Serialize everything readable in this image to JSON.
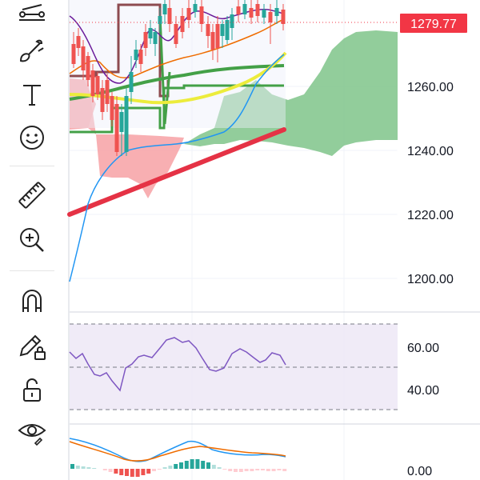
{
  "toolbar": {
    "tools": [
      {
        "name": "crosshair-lines-tool",
        "icon": "lines-icon"
      },
      {
        "name": "brush-tool",
        "icon": "brush-icon"
      },
      {
        "name": "text-tool",
        "icon": "text-icon"
      },
      {
        "name": "emoji-tool",
        "icon": "smiley-icon"
      },
      {
        "name": "ruler-tool",
        "icon": "ruler-icon"
      },
      {
        "name": "zoom-in-tool",
        "icon": "zoom-in-icon"
      },
      {
        "name": "magnet-tool",
        "icon": "magnet-icon"
      },
      {
        "name": "lock-drawing-tool",
        "icon": "pencil-lock-icon"
      },
      {
        "name": "unlock-tool",
        "icon": "unlock-icon"
      },
      {
        "name": "visibility-tool",
        "icon": "eye-icon"
      }
    ]
  },
  "colors": {
    "up": "#26a69a",
    "down": "#ef5350",
    "price_tag": "#f23645",
    "cloud_green": "#7fc48a",
    "cloud_red": "#f7a1a5",
    "rsi_line": "#7e57c2",
    "rsi_band": "#ede7f6",
    "ma_yellow": "#ecec3c",
    "ma_green": "#43a047",
    "trend_red": "#e53245",
    "ma_blue": "#2196f3",
    "ma_orange": "#ef6c00",
    "ma_purple": "#6a1b9a",
    "ma_brown": "#8d4b50"
  },
  "price_axis": {
    "current_price": "1279.77",
    "ticks": [
      "1260.00",
      "1240.00",
      "1220.00",
      "1200.00"
    ]
  },
  "rsi": {
    "ticks": [
      "60.00",
      "40.00"
    ],
    "upper": 70,
    "lower": 30,
    "middle": 50
  },
  "macd": {
    "ticks": [
      "0.00"
    ]
  }
}
